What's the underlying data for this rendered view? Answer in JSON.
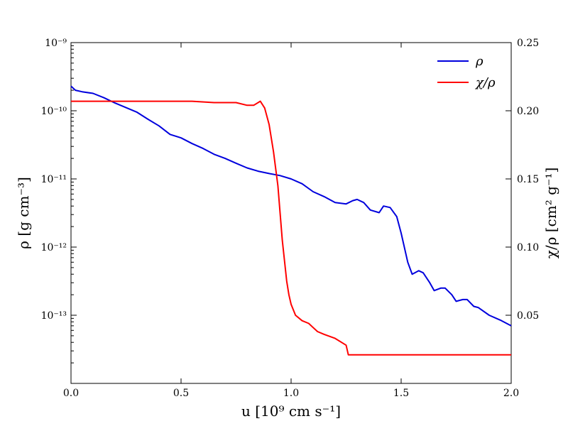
{
  "chart_data": {
    "type": "line",
    "x_axis": {
      "label": "u [10⁹ cm s⁻¹]",
      "range": [
        0.0,
        2.0
      ],
      "ticks": [
        0.0,
        0.5,
        1.0,
        1.5,
        2.0
      ],
      "tick_labels": [
        "0.0",
        "0.5",
        "1.0",
        "1.5",
        "2.0"
      ]
    },
    "y_left": {
      "label": "ρ [g cm⁻³]",
      "scale": "log",
      "range": [
        1e-14,
        1e-09
      ],
      "ticks": [
        1e-13,
        1e-12,
        1e-11,
        1e-10,
        1e-09
      ],
      "tick_labels": [
        "10⁻¹³",
        "10⁻¹²",
        "10⁻¹¹",
        "10⁻¹⁰",
        "10⁻⁹"
      ]
    },
    "y_right": {
      "label": "χ/ρ [cm² g⁻¹]",
      "scale": "linear",
      "range": [
        0.0,
        0.25
      ],
      "ticks": [
        0.05,
        0.1,
        0.15,
        0.2,
        0.25
      ],
      "tick_labels": [
        "0.05",
        "0.10",
        "0.15",
        "0.20",
        "0.25"
      ]
    },
    "legend": {
      "placement": "top-right"
    },
    "grid": false,
    "series": [
      {
        "name": "ρ",
        "color": "#0000dd",
        "axis": "left",
        "x": [
          0.0,
          0.02,
          0.05,
          0.1,
          0.15,
          0.2,
          0.3,
          0.35,
          0.4,
          0.45,
          0.5,
          0.55,
          0.6,
          0.65,
          0.7,
          0.75,
          0.8,
          0.85,
          0.9,
          0.95,
          1.0,
          1.05,
          1.1,
          1.15,
          1.2,
          1.25,
          1.28,
          1.3,
          1.33,
          1.36,
          1.4,
          1.42,
          1.45,
          1.48,
          1.5,
          1.53,
          1.55,
          1.58,
          1.6,
          1.63,
          1.65,
          1.68,
          1.7,
          1.73,
          1.75,
          1.78,
          1.8,
          1.83,
          1.85,
          1.9,
          1.95,
          2.0
        ],
        "y": [
          2.3e-10,
          2e-10,
          1.9e-10,
          1.8e-10,
          1.55e-10,
          1.3e-10,
          9.5e-11,
          7.5e-11,
          6e-11,
          4.5e-11,
          4e-11,
          3.3e-11,
          2.8e-11,
          2.3e-11,
          2e-11,
          1.7e-11,
          1.45e-11,
          1.3e-11,
          1.2e-11,
          1.12e-11,
          1e-11,
          8.5e-12,
          6.5e-12,
          5.5e-12,
          4.5e-12,
          4.3e-12,
          4.8e-12,
          5e-12,
          4.5e-12,
          3.5e-12,
          3.2e-12,
          4e-12,
          3.8e-12,
          2.8e-12,
          1.6e-12,
          6e-13,
          4e-13,
          4.5e-13,
          4.2e-13,
          3e-13,
          2.3e-13,
          2.5e-13,
          2.5e-13,
          2e-13,
          1.6e-13,
          1.7e-13,
          1.7e-13,
          1.35e-13,
          1.3e-13,
          1e-13,
          8.5e-14,
          7e-14
        ]
      },
      {
        "name": "χ/ρ",
        "color": "#ff0000",
        "axis": "right",
        "x": [
          0.0,
          0.2,
          0.4,
          0.55,
          0.65,
          0.75,
          0.8,
          0.83,
          0.86,
          0.88,
          0.9,
          0.92,
          0.94,
          0.95,
          0.96,
          0.97,
          0.98,
          0.99,
          1.0,
          1.02,
          1.05,
          1.08,
          1.1,
          1.12,
          1.15,
          1.2,
          1.25,
          1.26,
          1.3,
          1.5,
          1.7,
          2.0
        ],
        "y": [
          0.207,
          0.207,
          0.207,
          0.207,
          0.206,
          0.206,
          0.204,
          0.204,
          0.207,
          0.202,
          0.19,
          0.17,
          0.145,
          0.125,
          0.105,
          0.09,
          0.075,
          0.065,
          0.058,
          0.05,
          0.046,
          0.044,
          0.041,
          0.038,
          0.036,
          0.033,
          0.028,
          0.021,
          0.021,
          0.021,
          0.021,
          0.021
        ]
      }
    ]
  }
}
